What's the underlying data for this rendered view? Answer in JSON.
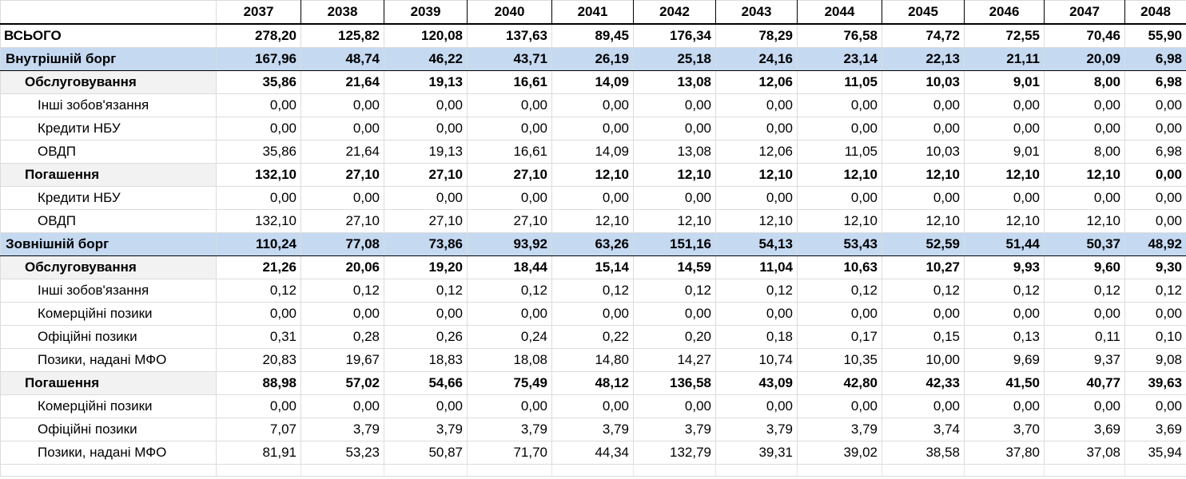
{
  "sheet": {
    "years": [
      "2037",
      "2038",
      "2039",
      "2040",
      "2041",
      "2042",
      "2043",
      "2044",
      "2045",
      "2046",
      "2047",
      "2048"
    ],
    "rows": [
      {
        "kind": "total",
        "label": "ВСЬОГО",
        "values": [
          "278,20",
          "125,82",
          "120,08",
          "137,63",
          "89,45",
          "176,34",
          "78,29",
          "76,58",
          "74,72",
          "72,55",
          "70,46",
          "55,90"
        ]
      },
      {
        "kind": "section",
        "label": "Внутрішній борг",
        "values": [
          "167,96",
          "48,74",
          "46,22",
          "43,71",
          "26,19",
          "25,18",
          "24,16",
          "23,14",
          "22,13",
          "21,11",
          "20,09",
          "6,98"
        ]
      },
      {
        "kind": "subtotal",
        "label": "Обслуговування",
        "values": [
          "35,86",
          "21,64",
          "19,13",
          "16,61",
          "14,09",
          "13,08",
          "12,06",
          "11,05",
          "10,03",
          "9,01",
          "8,00",
          "6,98"
        ]
      },
      {
        "kind": "item",
        "label": "Інші зобов'язання",
        "values": [
          "0,00",
          "0,00",
          "0,00",
          "0,00",
          "0,00",
          "0,00",
          "0,00",
          "0,00",
          "0,00",
          "0,00",
          "0,00",
          "0,00"
        ]
      },
      {
        "kind": "item",
        "label": "Кредити НБУ",
        "values": [
          "0,00",
          "0,00",
          "0,00",
          "0,00",
          "0,00",
          "0,00",
          "0,00",
          "0,00",
          "0,00",
          "0,00",
          "0,00",
          "0,00"
        ]
      },
      {
        "kind": "item",
        "label": "ОВДП",
        "values": [
          "35,86",
          "21,64",
          "19,13",
          "16,61",
          "14,09",
          "13,08",
          "12,06",
          "11,05",
          "10,03",
          "9,01",
          "8,00",
          "6,98"
        ]
      },
      {
        "kind": "subtotal",
        "label": "Погашення",
        "values": [
          "132,10",
          "27,10",
          "27,10",
          "27,10",
          "12,10",
          "12,10",
          "12,10",
          "12,10",
          "12,10",
          "12,10",
          "12,10",
          "0,00"
        ]
      },
      {
        "kind": "item",
        "label": "Кредити НБУ",
        "values": [
          "0,00",
          "0,00",
          "0,00",
          "0,00",
          "0,00",
          "0,00",
          "0,00",
          "0,00",
          "0,00",
          "0,00",
          "0,00",
          "0,00"
        ]
      },
      {
        "kind": "item",
        "label": "ОВДП",
        "values": [
          "132,10",
          "27,10",
          "27,10",
          "27,10",
          "12,10",
          "12,10",
          "12,10",
          "12,10",
          "12,10",
          "12,10",
          "12,10",
          "0,00"
        ]
      },
      {
        "kind": "section",
        "label": "Зовнішній борг",
        "values": [
          "110,24",
          "77,08",
          "73,86",
          "93,92",
          "63,26",
          "151,16",
          "54,13",
          "53,43",
          "52,59",
          "51,44",
          "50,37",
          "48,92"
        ]
      },
      {
        "kind": "subtotal",
        "label": "Обслуговування",
        "values": [
          "21,26",
          "20,06",
          "19,20",
          "18,44",
          "15,14",
          "14,59",
          "11,04",
          "10,63",
          "10,27",
          "9,93",
          "9,60",
          "9,30"
        ]
      },
      {
        "kind": "item",
        "label": "Інші зобов'язання",
        "values": [
          "0,12",
          "0,12",
          "0,12",
          "0,12",
          "0,12",
          "0,12",
          "0,12",
          "0,12",
          "0,12",
          "0,12",
          "0,12",
          "0,12"
        ]
      },
      {
        "kind": "item",
        "label": "Комерційні позики",
        "values": [
          "0,00",
          "0,00",
          "0,00",
          "0,00",
          "0,00",
          "0,00",
          "0,00",
          "0,00",
          "0,00",
          "0,00",
          "0,00",
          "0,00"
        ]
      },
      {
        "kind": "item",
        "label": "Офіційні позики",
        "values": [
          "0,31",
          "0,28",
          "0,26",
          "0,24",
          "0,22",
          "0,20",
          "0,18",
          "0,17",
          "0,15",
          "0,13",
          "0,11",
          "0,10"
        ]
      },
      {
        "kind": "item",
        "label": "Позики, надані МФО",
        "values": [
          "20,83",
          "19,67",
          "18,83",
          "18,08",
          "14,80",
          "14,27",
          "10,74",
          "10,35",
          "10,00",
          "9,69",
          "9,37",
          "9,08"
        ]
      },
      {
        "kind": "subtotal",
        "label": "Погашення",
        "values": [
          "88,98",
          "57,02",
          "54,66",
          "75,49",
          "48,12",
          "136,58",
          "43,09",
          "42,80",
          "42,33",
          "41,50",
          "40,77",
          "39,63"
        ]
      },
      {
        "kind": "item",
        "label": "Комерційні позики",
        "values": [
          "0,00",
          "0,00",
          "0,00",
          "0,00",
          "0,00",
          "0,00",
          "0,00",
          "0,00",
          "0,00",
          "0,00",
          "0,00",
          "0,00"
        ]
      },
      {
        "kind": "item",
        "label": "Офіційні позики",
        "values": [
          "7,07",
          "3,79",
          "3,79",
          "3,79",
          "3,79",
          "3,79",
          "3,79",
          "3,79",
          "3,74",
          "3,70",
          "3,69",
          "3,69"
        ]
      },
      {
        "kind": "item",
        "label": "Позики, надані МФО",
        "values": [
          "81,91",
          "53,23",
          "50,87",
          "71,70",
          "44,34",
          "132,79",
          "39,31",
          "39,02",
          "38,58",
          "37,80",
          "37,08",
          "35,94"
        ]
      }
    ]
  }
}
